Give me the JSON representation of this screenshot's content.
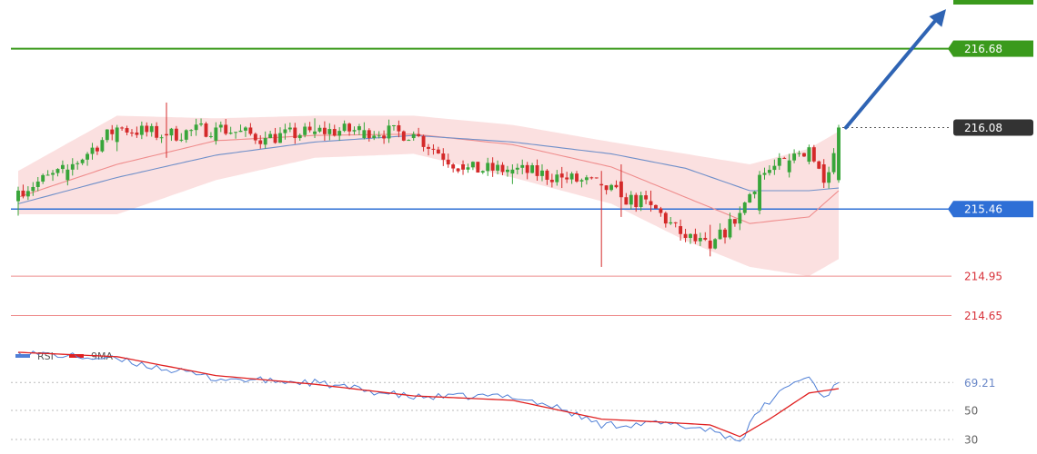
{
  "colors": {
    "bull": "#38a53a",
    "bear": "#d42a2a",
    "resistance": "#3a9a1c",
    "support": "#2e6fd6",
    "support_light": "#ee8d8d",
    "support_label": "#d8323a",
    "band_fill": "#f9d6d6",
    "ma_fast": "#ef8c8c",
    "ma_slow": "#6f8fc9",
    "arrow": "#2f64b4",
    "current": "#333333",
    "rsi": "#4f7fd6",
    "rsi_ma": "#e02020",
    "rsi_grid": "#bbbbbb"
  },
  "chart_data": [
    {
      "type": "candlestick",
      "title": "",
      "xlabel": "",
      "ylabel": "",
      "ylim": [
        214.55,
        217.05
      ],
      "grid": false,
      "levels": [
        {
          "name": "resistance",
          "value": 216.68,
          "label": "216.68",
          "color": "#3a9a1c"
        },
        {
          "name": "current",
          "value": 216.08,
          "label": "216.08",
          "color": "#333333"
        },
        {
          "name": "pivot",
          "value": 215.46,
          "label": "215.46",
          "color": "#2e6fd6"
        },
        {
          "name": "support1",
          "value": 214.95,
          "label": "214.95",
          "color": "#e05555"
        },
        {
          "name": "support2",
          "value": 214.65,
          "label": "214.65",
          "color": "#e05555"
        }
      ],
      "anchors": [
        {
          "i": 0,
          "o": 215.52,
          "c": 215.6,
          "h": 215.63,
          "l": 215.41
        },
        {
          "i": 10,
          "o": 215.68,
          "c": 215.76,
          "h": 215.8,
          "l": 215.64
        },
        {
          "i": 20,
          "o": 215.97,
          "c": 216.08,
          "h": 216.1,
          "l": 215.9
        },
        {
          "i": 30,
          "o": 216.03,
          "c": 216.02,
          "h": 216.27,
          "l": 215.85
        },
        {
          "i": 40,
          "o": 215.98,
          "c": 216.08,
          "h": 216.12,
          "l": 215.95
        },
        {
          "i": 50,
          "o": 215.95,
          "c": 216.0,
          "h": 216.05,
          "l": 215.92
        },
        {
          "i": 60,
          "o": 216.03,
          "c": 216.05,
          "h": 216.15,
          "l": 216.0
        },
        {
          "i": 70,
          "o": 216.0,
          "c": 216.06,
          "h": 216.12,
          "l": 215.99
        },
        {
          "i": 80,
          "o": 216.0,
          "c": 216.03,
          "h": 216.05,
          "l": 215.98
        },
        {
          "i": 90,
          "o": 215.8,
          "c": 215.76,
          "h": 215.83,
          "l": 215.72
        },
        {
          "i": 100,
          "o": 215.73,
          "c": 215.76,
          "h": 215.8,
          "l": 215.65
        },
        {
          "i": 110,
          "o": 215.73,
          "c": 215.7,
          "h": 215.78,
          "l": 215.62
        },
        {
          "i": 118,
          "o": 215.65,
          "c": 215.64,
          "h": 215.75,
          "l": 215.02
        },
        {
          "i": 122,
          "o": 215.67,
          "c": 215.55,
          "h": 215.8,
          "l": 215.4
        },
        {
          "i": 128,
          "o": 215.52,
          "c": 215.49,
          "h": 215.6,
          "l": 215.44
        },
        {
          "i": 134,
          "o": 215.33,
          "c": 215.27,
          "h": 215.38,
          "l": 215.22
        },
        {
          "i": 140,
          "o": 215.22,
          "c": 215.16,
          "h": 215.34,
          "l": 215.1
        },
        {
          "i": 146,
          "o": 215.35,
          "c": 215.43,
          "h": 215.48,
          "l": 215.3
        },
        {
          "i": 150,
          "o": 215.45,
          "c": 215.72,
          "h": 215.75,
          "l": 215.42
        },
        {
          "i": 156,
          "o": 215.74,
          "c": 215.83,
          "h": 215.88,
          "l": 215.7
        },
        {
          "i": 160,
          "o": 215.82,
          "c": 215.93,
          "h": 215.95,
          "l": 215.8
        },
        {
          "i": 163,
          "o": 215.8,
          "c": 215.66,
          "h": 215.84,
          "l": 215.62
        },
        {
          "i": 166,
          "o": 215.68,
          "c": 216.08,
          "h": 216.1,
          "l": 215.66
        }
      ],
      "overlays": [
        {
          "name": "fast-ma",
          "i": [
            0,
            20,
            40,
            60,
            80,
            100,
            120,
            135,
            148,
            160,
            166
          ],
          "values": [
            215.55,
            215.8,
            215.98,
            216.02,
            216.03,
            215.95,
            215.78,
            215.55,
            215.35,
            215.4,
            215.6
          ]
        },
        {
          "name": "slow-ma",
          "i": [
            0,
            20,
            40,
            60,
            80,
            100,
            120,
            135,
            148,
            160,
            166
          ],
          "values": [
            215.5,
            215.7,
            215.87,
            215.97,
            216.02,
            215.97,
            215.88,
            215.77,
            215.6,
            215.6,
            215.62
          ]
        },
        {
          "name": "band-upper",
          "i": [
            0,
            20,
            40,
            60,
            80,
            100,
            120,
            135,
            148,
            160,
            166
          ],
          "values": [
            215.75,
            216.17,
            216.15,
            216.17,
            216.17,
            216.1,
            215.97,
            215.88,
            215.8,
            215.92,
            216.05
          ]
        },
        {
          "name": "band-lower",
          "i": [
            0,
            20,
            40,
            60,
            80,
            100,
            120,
            135,
            148,
            160,
            166
          ],
          "values": [
            215.42,
            215.42,
            215.68,
            215.85,
            215.88,
            215.7,
            215.5,
            215.22,
            215.02,
            214.95,
            215.08
          ]
        }
      ]
    },
    {
      "type": "line",
      "series": [
        {
          "name": "RSI"
        },
        {
          "name": "9MA"
        }
      ],
      "ylim": [
        20,
        95
      ],
      "yticks": [
        69.21,
        50,
        30
      ],
      "level_value": 69.21,
      "rsi_points": {
        "i": [
          0,
          20,
          40,
          60,
          80,
          100,
          110,
          118,
          130,
          140,
          146,
          150,
          156,
          160,
          163,
          166
        ],
        "values": [
          90,
          85,
          72,
          69,
          59,
          60,
          51,
          40,
          41,
          37,
          29,
          50,
          68,
          73,
          59,
          69.21
        ]
      },
      "ma_points": {
        "i": [
          0,
          20,
          40,
          60,
          80,
          100,
          118,
          130,
          140,
          146,
          152,
          160,
          166
        ],
        "values": [
          90,
          87,
          74,
          68,
          60,
          57,
          44,
          42,
          40,
          32,
          44,
          62,
          65
        ]
      }
    }
  ],
  "legend": {
    "rsi_label": "RSI",
    "ma_label": "9MA"
  }
}
